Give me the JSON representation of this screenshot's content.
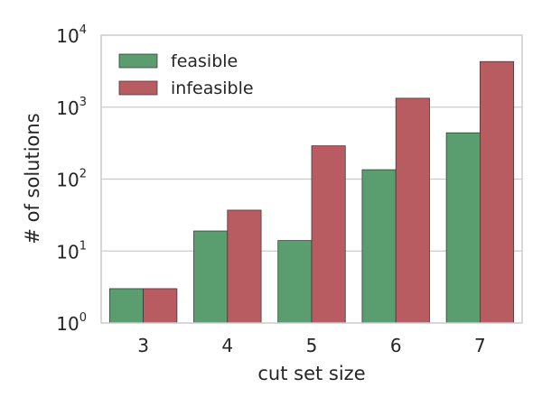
{
  "chart_data": {
    "type": "bar",
    "title": "",
    "xlabel": "cut set size",
    "ylabel": "# of solutions",
    "yscale": "log",
    "ylim": [
      1,
      10000
    ],
    "grid": "y",
    "legend_position": "top-left",
    "categories": [
      "3",
      "4",
      "5",
      "6",
      "7"
    ],
    "series": [
      {
        "name": "feasible",
        "color": "#5a9e6f",
        "values": [
          3,
          19,
          14,
          135,
          440
        ]
      },
      {
        "name": "infeasible",
        "color": "#b85c62",
        "values": [
          3,
          37,
          290,
          1330,
          4300
        ]
      }
    ],
    "ytick_labels": [
      {
        "value": 1,
        "base": "10",
        "exp": "0"
      },
      {
        "value": 10,
        "base": "10",
        "exp": "1"
      },
      {
        "value": 100,
        "base": "10",
        "exp": "2"
      },
      {
        "value": 1000,
        "base": "10",
        "exp": "3"
      },
      {
        "value": 10000,
        "base": "10",
        "exp": "4"
      }
    ]
  }
}
